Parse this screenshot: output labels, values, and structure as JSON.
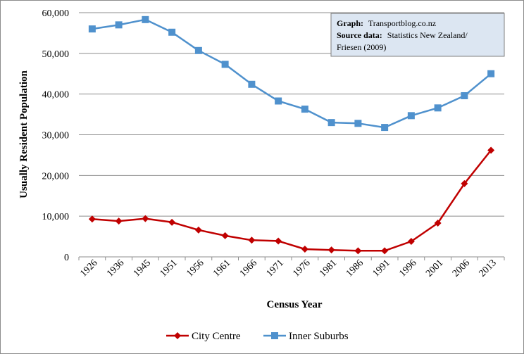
{
  "chart_data": {
    "type": "line",
    "title": "",
    "xlabel": "Census Year",
    "ylabel": "Usually Resident Population",
    "ylim": [
      0,
      60000
    ],
    "yticks": [
      0,
      10000,
      20000,
      30000,
      40000,
      50000,
      60000
    ],
    "ytick_labels": [
      "0",
      "10,000",
      "20,000",
      "30,000",
      "40,000",
      "50,000",
      "60,000"
    ],
    "categories": [
      "1926",
      "1936",
      "1945",
      "1951",
      "1956",
      "1961",
      "1966",
      "1971",
      "1976",
      "1981",
      "1986",
      "1991",
      "1996",
      "2001",
      "2006",
      "2013"
    ],
    "grid": "horizontal",
    "legend_position": "bottom",
    "series": [
      {
        "name": "City Centre",
        "color": "#c00000",
        "marker": "diamond",
        "values": [
          9300,
          8800,
          9400,
          8500,
          6600,
          5200,
          4100,
          3900,
          1900,
          1700,
          1500,
          1500,
          3800,
          8300,
          18000,
          26200
        ]
      },
      {
        "name": "Inner Suburbs",
        "color": "#4f91cd",
        "marker": "square",
        "values": [
          56000,
          57000,
          58300,
          55200,
          50700,
          47300,
          42400,
          38300,
          36300,
          33000,
          32800,
          31800,
          34700,
          36600,
          39600,
          45000
        ]
      }
    ],
    "annotation": {
      "graph_label": "Graph:",
      "graph_value": "Transportblog.co.nz",
      "source_label": "Source data:",
      "source_value_line1": "Statistics New Zealand/",
      "source_value_line2": "Friesen (2009)"
    }
  }
}
